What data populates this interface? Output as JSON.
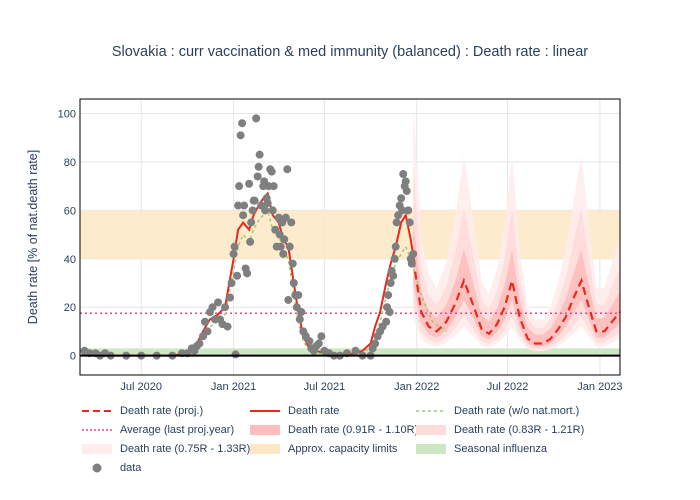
{
  "chart_data": {
    "type": "line",
    "title": "Slovakia : curr vaccination & med immunity (balanced) : Death rate : linear",
    "ylabel": "Death rate [% of nat.death rate]",
    "xlabel": "",
    "x_ticks": [
      "Jul 2020",
      "Jan 2021",
      "Jul 2021",
      "Jan 2022",
      "Jul 2022",
      "Jan 2023"
    ],
    "y_ticks": [
      "0",
      "20",
      "40",
      "60",
      "80",
      "100"
    ],
    "ylim": [
      -8,
      106
    ],
    "xlim": [
      "2020-03-01",
      "2023-02-10"
    ],
    "grid": true,
    "legend_placement": "bottom",
    "capacity_band": [
      40,
      60
    ],
    "influenza_band": [
      0,
      3
    ],
    "average_last_proj_year": 17.5,
    "series": [
      {
        "name": "Death rate (proj.)",
        "color": "#e8291c",
        "style": "dash",
        "x": [
          "2021-12-25",
          "2022-01-10",
          "2022-01-25",
          "2022-02-10",
          "2022-03-01",
          "2022-03-20",
          "2022-04-05",
          "2022-04-25",
          "2022-05-10",
          "2022-05-25",
          "2022-06-10",
          "2022-06-25",
          "2022-07-10",
          "2022-07-25",
          "2022-08-10",
          "2022-08-25",
          "2022-09-10",
          "2022-09-25",
          "2022-10-10",
          "2022-10-25",
          "2022-11-10",
          "2022-11-25",
          "2022-12-10",
          "2022-12-25",
          "2023-01-10",
          "2023-01-25",
          "2023-02-10"
        ],
        "y": [
          40,
          18,
          12,
          10,
          14,
          22,
          31,
          20,
          11,
          9,
          13,
          20,
          31,
          16,
          7,
          5,
          5,
          7,
          11,
          16,
          24,
          31,
          20,
          10,
          10,
          14,
          18
        ]
      },
      {
        "name": "Death rate",
        "color": "#e8291c",
        "style": "solid",
        "x": [
          "2020-03-01",
          "2020-04-01",
          "2020-05-01",
          "2020-06-01",
          "2020-07-01",
          "2020-08-01",
          "2020-09-01",
          "2020-10-01",
          "2020-10-15",
          "2020-11-01",
          "2020-11-15",
          "2020-12-01",
          "2020-12-15",
          "2021-01-01",
          "2021-01-10",
          "2021-01-20",
          "2021-02-01",
          "2021-02-10",
          "2021-02-20",
          "2021-03-01",
          "2021-03-10",
          "2021-03-20",
          "2021-04-01",
          "2021-04-10",
          "2021-04-20",
          "2021-05-01",
          "2021-05-10",
          "2021-05-20",
          "2021-06-01",
          "2021-06-15",
          "2021-07-01",
          "2021-07-15",
          "2021-08-01",
          "2021-08-15",
          "2021-09-01",
          "2021-09-15",
          "2021-10-01",
          "2021-10-10",
          "2021-10-20",
          "2021-11-01",
          "2021-11-10",
          "2021-11-20",
          "2021-12-01",
          "2021-12-10",
          "2021-12-20",
          "2021-12-28"
        ],
        "y": [
          0,
          1,
          0,
          0,
          0,
          0,
          0,
          1,
          3,
          10,
          15,
          17,
          20,
          40,
          52,
          55,
          52,
          58,
          62,
          65,
          67,
          58,
          55,
          48,
          45,
          30,
          18,
          8,
          3,
          2,
          1,
          0.5,
          0.5,
          0.5,
          1,
          2,
          5,
          12,
          18,
          30,
          38,
          45,
          55,
          58,
          48,
          38
        ]
      },
      {
        "name": "Death rate (w/o nat.mort.)",
        "color": "#9ccc6a",
        "style": "dot",
        "x": [
          "2020-03-01",
          "2020-06-01",
          "2020-09-01",
          "2020-10-15",
          "2020-11-01",
          "2020-11-15",
          "2020-12-01",
          "2020-12-15",
          "2021-01-01",
          "2021-01-10",
          "2021-01-20",
          "2021-02-01",
          "2021-02-10",
          "2021-02-20",
          "2021-03-01",
          "2021-03-10",
          "2021-03-20",
          "2021-04-01",
          "2021-04-10",
          "2021-04-20",
          "2021-05-01",
          "2021-05-10",
          "2021-05-20",
          "2021-06-01",
          "2021-06-15",
          "2021-07-01",
          "2021-08-01",
          "2021-09-01",
          "2021-10-01",
          "2021-10-20",
          "2021-11-10",
          "2021-11-20",
          "2021-12-01",
          "2021-12-10",
          "2021-12-20",
          "2022-01-10",
          "2022-02-01",
          "2022-03-01"
        ],
        "y": [
          0,
          0,
          0,
          2,
          8,
          12,
          14,
          17,
          35,
          45,
          50,
          47,
          52,
          56,
          58,
          60,
          52,
          50,
          43,
          40,
          25,
          14,
          6,
          2,
          1,
          0.5,
          0.5,
          0.5,
          3,
          14,
          32,
          38,
          42,
          45,
          40,
          25,
          14,
          10
        ]
      },
      {
        "name": "Average (last proj.year)",
        "color": "#e54a8a",
        "style": "dot"
      },
      {
        "name": "Death rate (0.91R - 1.10R)",
        "color": "#ffbdbd",
        "style": "band"
      },
      {
        "name": "Death rate (0.83R - 1.21R)",
        "color": "#ffdcdc",
        "style": "band"
      },
      {
        "name": "Death rate (0.75R - 1.33R)",
        "color": "#ffecec",
        "style": "band"
      },
      {
        "name": "Approx. capacity limits",
        "color": "#fde7c4",
        "style": "band"
      },
      {
        "name": "Seasonal influenza",
        "color": "#cfe6c5",
        "style": "band"
      },
      {
        "name": "data",
        "color": "#7f7f7f",
        "style": "markers",
        "x": [
          "2020-03-10",
          "2020-03-20",
          "2020-04-01",
          "2020-04-10",
          "2020-04-20",
          "2020-05-01",
          "2020-06-01",
          "2020-07-01",
          "2020-08-01",
          "2020-09-01",
          "2020-09-20",
          "2020-10-01",
          "2020-10-10",
          "2020-10-15",
          "2020-10-20",
          "2020-10-25",
          "2020-11-01",
          "2020-11-05",
          "2020-11-10",
          "2020-11-15",
          "2020-11-20",
          "2020-11-25",
          "2020-12-01",
          "2020-12-05",
          "2020-12-10",
          "2020-12-15",
          "2020-12-20",
          "2020-12-25",
          "2020-12-28",
          "2021-01-01",
          "2021-01-03",
          "2021-01-05",
          "2021-01-08",
          "2021-01-10",
          "2021-01-12",
          "2021-01-15",
          "2021-01-18",
          "2021-01-20",
          "2021-01-22",
          "2021-01-25",
          "2021-01-28",
          "2021-02-01",
          "2021-02-03",
          "2021-02-05",
          "2021-02-08",
          "2021-02-10",
          "2021-02-12",
          "2021-02-15",
          "2021-02-18",
          "2021-02-20",
          "2021-02-22",
          "2021-02-25",
          "2021-03-01",
          "2021-03-03",
          "2021-03-05",
          "2021-03-08",
          "2021-03-10",
          "2021-03-12",
          "2021-03-15",
          "2021-03-18",
          "2021-03-20",
          "2021-03-22",
          "2021-03-25",
          "2021-03-28",
          "2021-04-01",
          "2021-04-03",
          "2021-04-05",
          "2021-04-08",
          "2021-04-10",
          "2021-04-12",
          "2021-04-15",
          "2021-04-18",
          "2021-04-20",
          "2021-04-23",
          "2021-04-26",
          "2021-04-29",
          "2021-05-01",
          "2021-05-04",
          "2021-05-07",
          "2021-05-10",
          "2021-05-13",
          "2021-05-16",
          "2021-05-20",
          "2021-05-25",
          "2021-06-01",
          "2021-06-05",
          "2021-06-10",
          "2021-06-15",
          "2021-06-20",
          "2021-06-25",
          "2021-07-01",
          "2021-07-10",
          "2021-07-20",
          "2021-08-01",
          "2021-08-15",
          "2021-09-01",
          "2021-09-15",
          "2021-10-01",
          "2021-10-05",
          "2021-10-10",
          "2021-10-15",
          "2021-10-20",
          "2021-10-25",
          "2021-11-01",
          "2021-11-03",
          "2021-11-05",
          "2021-11-08",
          "2021-11-10",
          "2021-11-12",
          "2021-11-15",
          "2021-11-18",
          "2021-11-20",
          "2021-11-22",
          "2021-11-25",
          "2021-11-28",
          "2021-12-01",
          "2021-12-03",
          "2021-12-05",
          "2021-12-08",
          "2021-12-10",
          "2021-12-12",
          "2021-12-15",
          "2021-12-18",
          "2021-12-20",
          "2021-12-22",
          "2021-12-25"
        ],
        "y": [
          2,
          1,
          1,
          0,
          1,
          0,
          0,
          0,
          0,
          0,
          1,
          1,
          3,
          2,
          4,
          5,
          8,
          14,
          10,
          18,
          20,
          15,
          22,
          15,
          13,
          20,
          12,
          24,
          30,
          42,
          45,
          0.5,
          33,
          62,
          70,
          91,
          96,
          58,
          62,
          36,
          34,
          71,
          47,
          55,
          60,
          64,
          64,
          98,
          74,
          78,
          83,
          62,
          70,
          72,
          60,
          65,
          63,
          70,
          77,
          76,
          60,
          70,
          52,
          45,
          57,
          50,
          45,
          55,
          42,
          48,
          57,
          77,
          23,
          45,
          55,
          38,
          30,
          25,
          20,
          25,
          15,
          18,
          10,
          8,
          6,
          3,
          2,
          4,
          5,
          8,
          2,
          1,
          0,
          0,
          1,
          2,
          0,
          0,
          3,
          5,
          8,
          10,
          12,
          14,
          20,
          25,
          18,
          30,
          35,
          33,
          40,
          45,
          55,
          58,
          62,
          65,
          60,
          75,
          70,
          72,
          68,
          60,
          55,
          40,
          38,
          42
        ]
      }
    ]
  }
}
